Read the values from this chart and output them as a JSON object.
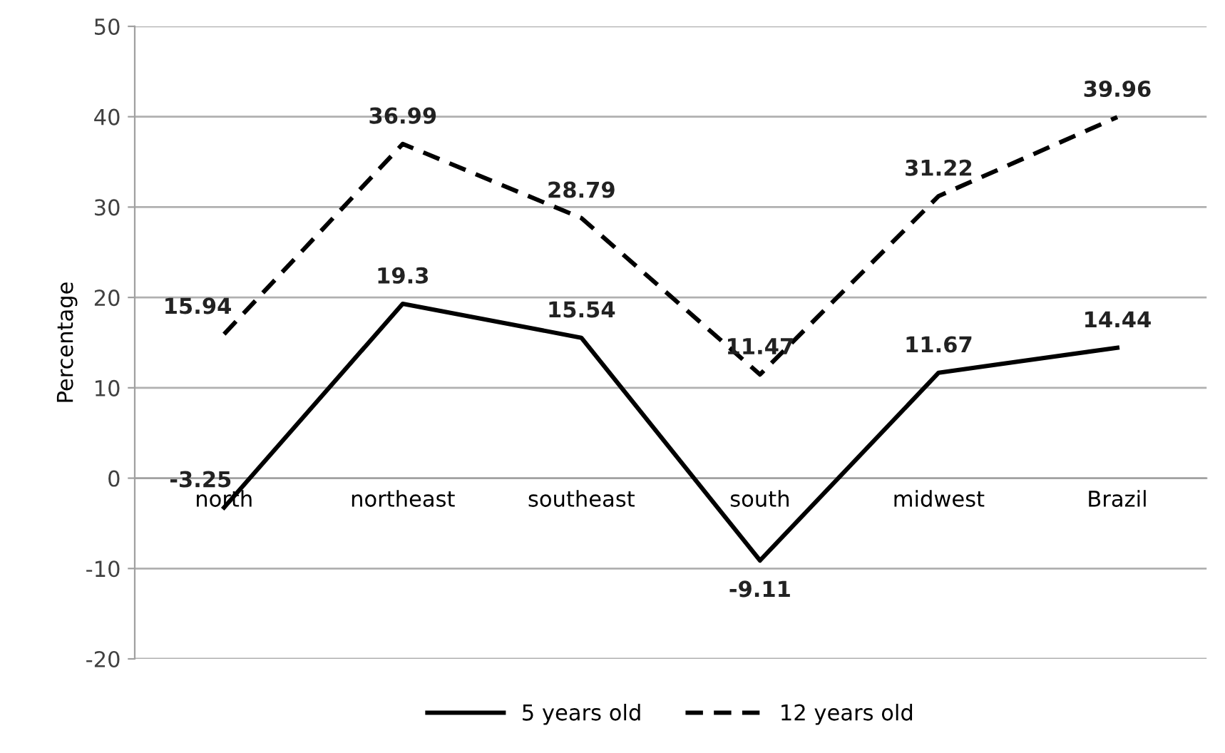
{
  "chart_data": {
    "type": "line",
    "ylabel": "Percentage",
    "categories": [
      "north",
      "northeast",
      "southeast",
      "south",
      "midwest",
      "Brazil"
    ],
    "series": [
      {
        "name": "5 years old",
        "color": "#000000",
        "line_style": "solid",
        "values": [
          -3.25,
          19.3,
          15.54,
          -9.11,
          11.67,
          14.44
        ]
      },
      {
        "name": "12 years old",
        "color": "#000000",
        "line_style": "dashed",
        "values": [
          15.94,
          36.99,
          28.79,
          11.47,
          31.22,
          39.96
        ]
      }
    ],
    "ylim": [
      -20,
      50
    ],
    "yticks": [
      -20,
      -10,
      0,
      10,
      20,
      30,
      40,
      50
    ],
    "grid": "y",
    "legend": "bottom",
    "data_labels": true,
    "marker": "none"
  }
}
